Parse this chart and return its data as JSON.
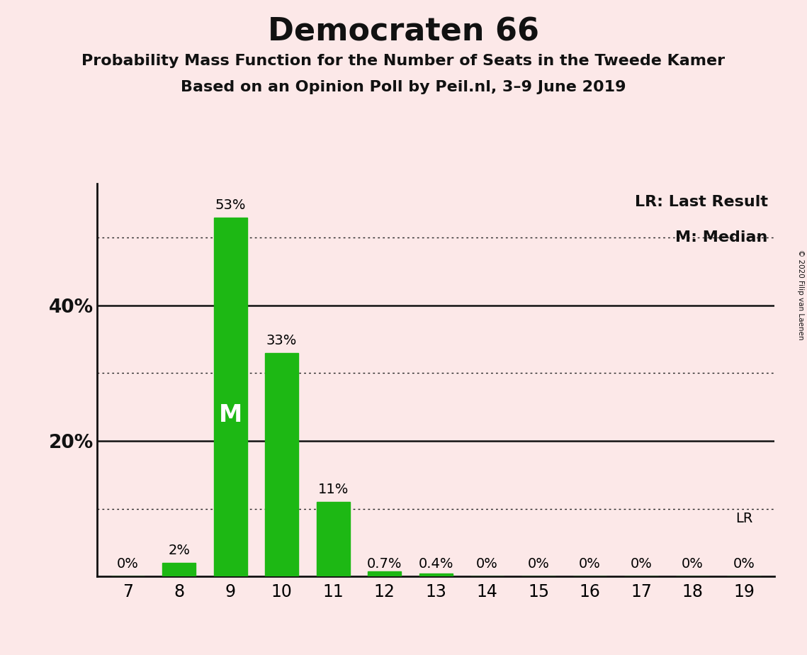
{
  "title": "Democraten 66",
  "subtitle1": "Probability Mass Function for the Number of Seats in the Tweede Kamer",
  "subtitle2": "Based on an Opinion Poll by Peil.nl, 3–9 June 2019",
  "copyright": "© 2020 Filip van Laenen",
  "seats": [
    7,
    8,
    9,
    10,
    11,
    12,
    13,
    14,
    15,
    16,
    17,
    18,
    19
  ],
  "probabilities": [
    0.0,
    2.0,
    53.0,
    33.0,
    11.0,
    0.7,
    0.4,
    0.0,
    0.0,
    0.0,
    0.0,
    0.0,
    0.0
  ],
  "bar_labels": [
    "0%",
    "2%",
    "53%",
    "33%",
    "11%",
    "0.7%",
    "0.4%",
    "0%",
    "0%",
    "0%",
    "0%",
    "0%",
    "0%"
  ],
  "bar_color": "#1db814",
  "background_color": "#fce8e8",
  "median_seat": 9,
  "median_label": "M",
  "last_result_seat": 19,
  "last_result_label": "LR",
  "legend_lr": "LR: Last Result",
  "legend_m": "M: Median",
  "dotted_lines": [
    10,
    30,
    50
  ],
  "solid_lines": [
    20,
    40
  ],
  "ylim_max": 58,
  "bar_label_fontsize": 14,
  "tick_fontsize": 17,
  "ytick_positions": [
    20,
    40
  ],
  "ytick_labels": [
    "20%",
    "40%"
  ]
}
